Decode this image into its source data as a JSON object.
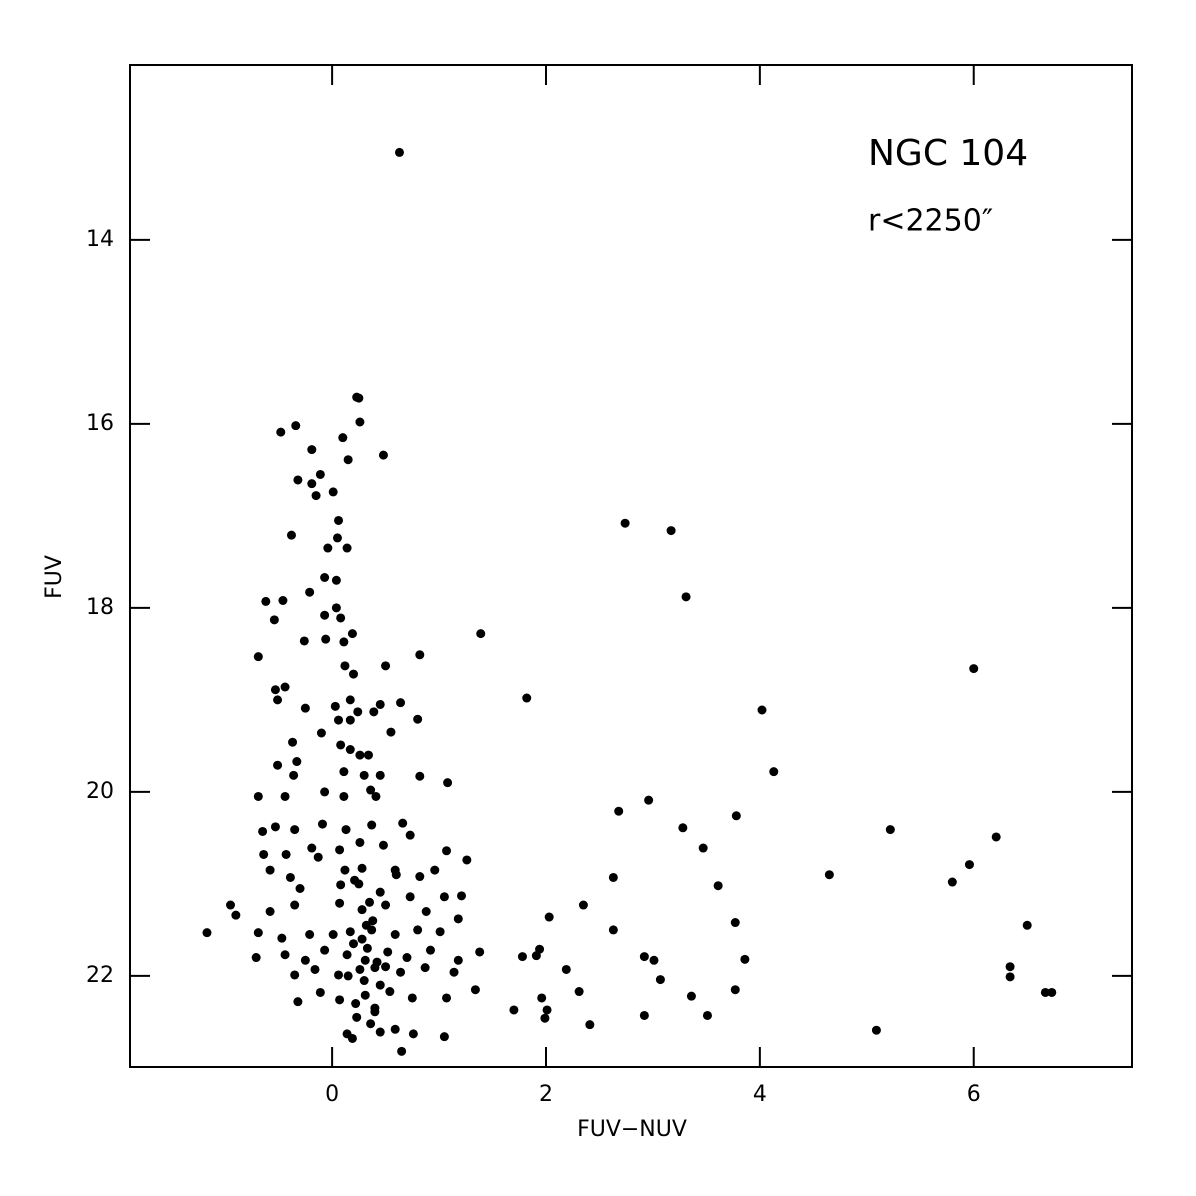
{
  "chart_data": {
    "type": "scatter",
    "xlabel": "FUV−NUV",
    "ylabel": "FUV",
    "annotations": [
      "NGC 104",
      "r<2250″"
    ],
    "xlim": [
      -1.89,
      7.48
    ],
    "ylim": [
      22.99,
      12.1
    ],
    "xticks": [
      0,
      2,
      4,
      6
    ],
    "yticks": [
      14,
      16,
      18,
      20,
      22
    ],
    "color": "#000000",
    "x": [
      0.63,
      0.23,
      0.25,
      0.26,
      0.48,
      -0.48,
      -0.34,
      0.1,
      0.15,
      -0.19,
      -0.32,
      -0.19,
      -0.11,
      -0.15,
      0.01,
      -0.38,
      0.06,
      0.05,
      0.14,
      -0.04,
      -0.07,
      0.04,
      -0.62,
      -0.46,
      -0.54,
      -0.21,
      -0.07,
      0.04,
      0.08,
      0.19,
      -0.26,
      -0.06,
      -0.69,
      0.11,
      0.12,
      0.2,
      0.5,
      0.82,
      -0.53,
      -0.44,
      -0.51,
      -0.25,
      0.03,
      0.17,
      0.24,
      0.39,
      0.45,
      0.64,
      0.55,
      0.8,
      0.06,
      0.17,
      -0.1,
      -0.37,
      -0.51,
      -0.33,
      -0.36,
      0.08,
      0.17,
      0.26,
      0.34,
      0.11,
      0.3,
      0.45,
      0.82,
      1.08,
      -0.69,
      -0.44,
      -0.07,
      0.11,
      0.36,
      0.41,
      -0.65,
      -0.53,
      -0.35,
      -0.09,
      0.13,
      0.37,
      0.66,
      0.73,
      -0.64,
      -0.43,
      -0.19,
      -0.13,
      0.07,
      0.26,
      0.48,
      1.07,
      1.26,
      -0.58,
      -0.39,
      0.12,
      0.28,
      0.59,
      0.82,
      0.96,
      -0.3,
      0.08,
      0.21,
      0.45,
      0.73,
      1.05,
      1.21,
      -0.95,
      -0.9,
      -1.17,
      -0.58,
      -0.35,
      0.07,
      0.28,
      0.5,
      0.88,
      1.18,
      -0.69,
      -0.47,
      -0.21,
      0.01,
      0.17,
      0.37,
      0.59,
      0.8,
      1.01,
      -0.71,
      -0.44,
      -0.25,
      -0.07,
      0.14,
      0.31,
      0.52,
      0.7,
      0.92,
      1.18,
      1.38,
      -0.35,
      -0.16,
      0.06,
      0.26,
      0.4,
      0.64,
      0.87,
      1.14,
      -0.32,
      -0.11,
      0.07,
      0.31,
      0.54,
      0.75,
      1.07,
      1.34,
      0.14,
      0.19,
      0.36,
      0.45,
      0.59,
      0.65,
      0.76,
      1.05,
      0.4,
      0.23,
      0.2,
      0.33,
      0.42,
      0.3,
      0.38,
      0.25,
      0.35,
      0.45,
      0.22,
      0.28,
      0.5,
      0.15,
      0.32,
      0.4,
      0.6,
      2.74,
      3.17,
      3.31,
      1.39,
      1.82,
      4.02,
      4.13,
      6.0,
      2.68,
      2.96,
      3.28,
      3.78,
      5.22,
      6.21,
      5.96,
      3.47,
      2.63,
      3.61,
      4.65,
      5.8,
      2.35,
      2.03,
      2.63,
      3.77,
      6.5,
      1.78,
      1.91,
      1.94,
      2.19,
      2.92,
      3.01,
      3.86,
      6.34,
      6.34,
      2.31,
      1.96,
      2.01,
      1.99,
      1.7,
      2.41,
      3.07,
      3.36,
      2.92,
      3.51,
      3.77,
      5.09,
      6.67,
      6.73
    ],
    "values": [
      13.05,
      15.71,
      15.72,
      15.98,
      16.34,
      16.09,
      16.02,
      16.15,
      16.39,
      16.28,
      16.61,
      16.65,
      16.55,
      16.78,
      16.74,
      17.21,
      17.05,
      17.24,
      17.35,
      17.35,
      17.67,
      17.7,
      17.93,
      17.92,
      18.13,
      17.83,
      18.08,
      18.0,
      18.11,
      18.28,
      18.36,
      18.34,
      18.53,
      18.37,
      18.63,
      18.72,
      18.63,
      18.51,
      18.89,
      18.86,
      19.0,
      19.09,
      19.07,
      19.0,
      19.13,
      19.13,
      19.05,
      19.03,
      19.35,
      19.21,
      19.22,
      19.22,
      19.36,
      19.46,
      19.71,
      19.67,
      19.82,
      19.49,
      19.54,
      19.6,
      19.6,
      19.78,
      19.82,
      19.82,
      19.83,
      19.9,
      20.05,
      20.05,
      20.0,
      20.05,
      19.98,
      20.05,
      20.43,
      20.38,
      20.41,
      20.35,
      20.41,
      20.36,
      20.34,
      20.47,
      20.68,
      20.68,
      20.61,
      20.71,
      20.63,
      20.55,
      20.58,
      20.64,
      20.74,
      20.85,
      20.93,
      20.85,
      20.83,
      20.85,
      20.92,
      20.85,
      21.05,
      21.01,
      20.96,
      21.09,
      21.14,
      21.14,
      21.13,
      21.23,
      21.34,
      21.53,
      21.3,
      21.23,
      21.21,
      21.28,
      21.23,
      21.3,
      21.38,
      21.53,
      21.59,
      21.55,
      21.55,
      21.52,
      21.5,
      21.55,
      21.5,
      21.52,
      21.8,
      21.77,
      21.83,
      21.72,
      21.77,
      21.83,
      21.74,
      21.8,
      21.72,
      21.83,
      21.74,
      21.99,
      21.93,
      21.99,
      21.93,
      21.91,
      21.96,
      21.91,
      21.96,
      22.28,
      22.18,
      22.26,
      22.21,
      22.17,
      22.24,
      22.24,
      22.15,
      22.63,
      22.68,
      22.52,
      22.61,
      22.58,
      22.82,
      22.63,
      22.66,
      22.39,
      22.45,
      21.65,
      21.7,
      21.85,
      22.05,
      21.4,
      21.0,
      21.2,
      22.1,
      22.3,
      21.6,
      21.9,
      22.0,
      21.45,
      22.35,
      20.9,
      17.08,
      17.16,
      17.88,
      18.28,
      18.98,
      19.11,
      19.78,
      18.66,
      20.21,
      20.09,
      20.39,
      20.26,
      20.41,
      20.49,
      20.79,
      20.61,
      20.93,
      21.02,
      20.9,
      20.98,
      21.23,
      21.36,
      21.5,
      21.42,
      21.45,
      21.79,
      21.78,
      21.71,
      21.93,
      21.79,
      21.83,
      21.82,
      21.9,
      22.01,
      22.17,
      22.24,
      22.37,
      22.46,
      22.37,
      22.53,
      22.04,
      22.22,
      22.43,
      22.43,
      22.15,
      22.59,
      22.18,
      22.18
    ]
  }
}
